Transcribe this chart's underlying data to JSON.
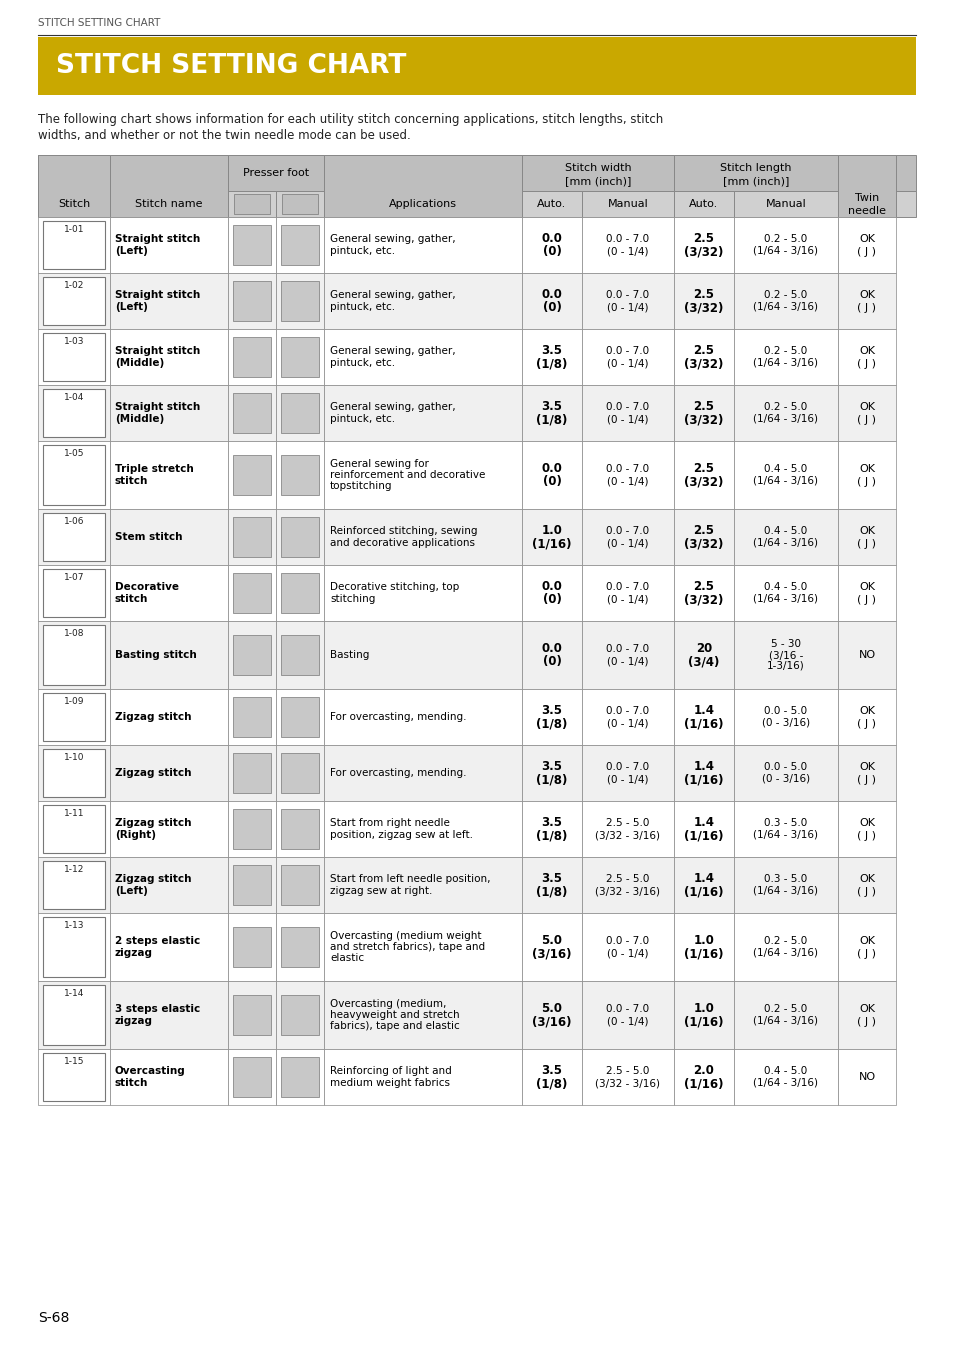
{
  "page_header": "STITCH SETTING CHART",
  "title": "STITCH SETTING CHART",
  "title_bg": "#C9A800",
  "title_color": "#FFFFFF",
  "description_line1": "The following chart shows information for each utility stitch concerning applications, stitch lengths, stitch",
  "description_line2": "widths, and whether or not the twin needle mode can be used.",
  "header_bg": "#BEBEBE",
  "subheader_bg": "#D0D0D0",
  "row_bg_odd": "#FFFFFF",
  "row_bg_even": "#F0F0F0",
  "border_color": "#888888",
  "rows": [
    {
      "id": "1-01",
      "name": "Straight stitch\n(Left)",
      "application": "General sewing, gather,\npintuck, etc.",
      "sw_auto": "0.0\n(0)",
      "sw_manual": "0.0 - 7.0\n(0 - 1/4)",
      "sl_auto": "2.5\n(3/32)",
      "sl_manual": "0.2 - 5.0\n(1/64 - 3/16)",
      "twin": "OK\n( J )"
    },
    {
      "id": "1-02",
      "name": "Straight stitch\n(Left)",
      "application": "General sewing, gather,\npintuck, etc.",
      "sw_auto": "0.0\n(0)",
      "sw_manual": "0.0 - 7.0\n(0 - 1/4)",
      "sl_auto": "2.5\n(3/32)",
      "sl_manual": "0.2 - 5.0\n(1/64 - 3/16)",
      "twin": "OK\n( J )"
    },
    {
      "id": "1-03",
      "name": "Straight stitch\n(Middle)",
      "application": "General sewing, gather,\npintuck, etc.",
      "sw_auto": "3.5\n(1/8)",
      "sw_manual": "0.0 - 7.0\n(0 - 1/4)",
      "sl_auto": "2.5\n(3/32)",
      "sl_manual": "0.2 - 5.0\n(1/64 - 3/16)",
      "twin": "OK\n( J )"
    },
    {
      "id": "1-04",
      "name": "Straight stitch\n(Middle)",
      "application": "General sewing, gather,\npintuck, etc.",
      "sw_auto": "3.5\n(1/8)",
      "sw_manual": "0.0 - 7.0\n(0 - 1/4)",
      "sl_auto": "2.5\n(3/32)",
      "sl_manual": "0.2 - 5.0\n(1/64 - 3/16)",
      "twin": "OK\n( J )"
    },
    {
      "id": "1-05",
      "name": "Triple stretch\nstitch",
      "application": "General sewing for\nreinforcement and decorative\ntopstitching",
      "sw_auto": "0.0\n(0)",
      "sw_manual": "0.0 - 7.0\n(0 - 1/4)",
      "sl_auto": "2.5\n(3/32)",
      "sl_manual": "0.4 - 5.0\n(1/64 - 3/16)",
      "twin": "OK\n( J )"
    },
    {
      "id": "1-06",
      "name": "Stem stitch",
      "application": "Reinforced stitching, sewing\nand decorative applications",
      "sw_auto": "1.0\n(1/16)",
      "sw_manual": "0.0 - 7.0\n(0 - 1/4)",
      "sl_auto": "2.5\n(3/32)",
      "sl_manual": "0.4 - 5.0\n(1/64 - 3/16)",
      "twin": "OK\n( J )"
    },
    {
      "id": "1-07",
      "name": "Decorative\nstitch",
      "application": "Decorative stitching, top\nstitching",
      "sw_auto": "0.0\n(0)",
      "sw_manual": "0.0 - 7.0\n(0 - 1/4)",
      "sl_auto": "2.5\n(3/32)",
      "sl_manual": "0.4 - 5.0\n(1/64 - 3/16)",
      "twin": "OK\n( J )"
    },
    {
      "id": "1-08",
      "name": "Basting stitch",
      "application": "Basting",
      "sw_auto": "0.0\n(0)",
      "sw_manual": "0.0 - 7.0\n(0 - 1/4)",
      "sl_auto": "20\n(3/4)",
      "sl_manual": "5 - 30\n(3/16 -\n1-3/16)",
      "twin": "NO"
    },
    {
      "id": "1-09",
      "name": "Zigzag stitch",
      "application": "For overcasting, mending.",
      "sw_auto": "3.5\n(1/8)",
      "sw_manual": "0.0 - 7.0\n(0 - 1/4)",
      "sl_auto": "1.4\n(1/16)",
      "sl_manual": "0.0 - 5.0\n(0 - 3/16)",
      "twin": "OK\n( J )"
    },
    {
      "id": "1-10",
      "name": "Zigzag stitch",
      "application": "For overcasting, mending.",
      "sw_auto": "3.5\n(1/8)",
      "sw_manual": "0.0 - 7.0\n(0 - 1/4)",
      "sl_auto": "1.4\n(1/16)",
      "sl_manual": "0.0 - 5.0\n(0 - 3/16)",
      "twin": "OK\n( J )"
    },
    {
      "id": "1-11",
      "name": "Zigzag stitch\n(Right)",
      "application": "Start from right needle\nposition, zigzag sew at left.",
      "sw_auto": "3.5\n(1/8)",
      "sw_manual": "2.5 - 5.0\n(3/32 - 3/16)",
      "sl_auto": "1.4\n(1/16)",
      "sl_manual": "0.3 - 5.0\n(1/64 - 3/16)",
      "twin": "OK\n( J )"
    },
    {
      "id": "1-12",
      "name": "Zigzag stitch\n(Left)",
      "application": "Start from left needle position,\nzigzag sew at right.",
      "sw_auto": "3.5\n(1/8)",
      "sw_manual": "2.5 - 5.0\n(3/32 - 3/16)",
      "sl_auto": "1.4\n(1/16)",
      "sl_manual": "0.3 - 5.0\n(1/64 - 3/16)",
      "twin": "OK\n( J )"
    },
    {
      "id": "1-13",
      "name": "2 steps elastic\nzigzag",
      "application": "Overcasting (medium weight\nand stretch fabrics), tape and\nelastic",
      "sw_auto": "5.0\n(3/16)",
      "sw_manual": "0.0 - 7.0\n(0 - 1/4)",
      "sl_auto": "1.0\n(1/16)",
      "sl_manual": "0.2 - 5.0\n(1/64 - 3/16)",
      "twin": "OK\n( J )"
    },
    {
      "id": "1-14",
      "name": "3 steps elastic\nzigzag",
      "application": "Overcasting (medium,\nheavyweight and stretch\nfabrics), tape and elastic",
      "sw_auto": "5.0\n(3/16)",
      "sw_manual": "0.0 - 7.0\n(0 - 1/4)",
      "sl_auto": "1.0\n(1/16)",
      "sl_manual": "0.2 - 5.0\n(1/64 - 3/16)",
      "twin": "OK\n( J )"
    },
    {
      "id": "1-15",
      "name": "Overcasting\nstitch",
      "application": "Reinforcing of light and\nmedium weight fabrics",
      "sw_auto": "3.5\n(1/8)",
      "sw_manual": "2.5 - 5.0\n(3/32 - 3/16)",
      "sl_auto": "2.0\n(1/16)",
      "sl_manual": "0.4 - 5.0\n(1/64 - 3/16)",
      "twin": "NO"
    }
  ],
  "footer": "S-68"
}
